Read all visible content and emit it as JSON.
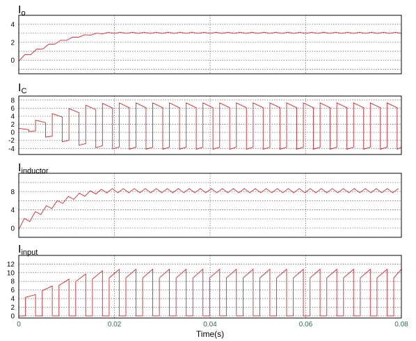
{
  "chart_data": {
    "type": "line",
    "xlabel": "Time(s)",
    "xlim": [
      0,
      0.08
    ],
    "xticks": [
      0,
      0.02,
      0.04,
      0.06,
      0.08
    ],
    "xtick_labels": [
      "0",
      "0.02",
      "0.04",
      "0.06",
      "0.08"
    ],
    "line_color": "#e0242a",
    "grid": true,
    "panels": [
      {
        "title": "I",
        "title_sub": "o",
        "ylim": [
          -1.5,
          5
        ],
        "yticks": [
          0,
          2,
          4
        ],
        "ytick_labels": [
          "0",
          "2",
          "4"
        ],
        "grid_y": [
          -1,
          0,
          1,
          2,
          3,
          4
        ],
        "series": {
          "kind": "triangle_ripple",
          "period": 0.0025,
          "start": 0.1,
          "steady": 3.05,
          "rise_time": 0.02,
          "ripple_start": 0.4,
          "ripple_end": 0.12
        }
      },
      {
        "title": "I",
        "title_sub": "C",
        "ylim": [
          -5.5,
          9
        ],
        "yticks": [
          -4,
          -2,
          0,
          2,
          4,
          6,
          8
        ],
        "ytick_labels": [
          "-4",
          "-2",
          "0",
          "2",
          "4",
          "6",
          "8"
        ],
        "grid_y": [
          -4,
          -2,
          0,
          2,
          4,
          6,
          8
        ],
        "series": {
          "kind": "pulse",
          "period": 0.0035,
          "duty": 0.6,
          "high_start": 1.0,
          "high_steady": 7.3,
          "high_droop": 1.2,
          "low_start": 0.2,
          "low_steady": -4.2,
          "low_droop": 0.5,
          "rise_time": 0.02
        }
      },
      {
        "title": "I",
        "title_sub": "inductor",
        "ylim": [
          -2,
          12
        ],
        "yticks": [
          0,
          4,
          8
        ],
        "ytick_labels": [
          "0",
          "4",
          "8"
        ],
        "grid_y": [
          0,
          2,
          4,
          6,
          8,
          10
        ],
        "series": {
          "kind": "triangle_ripple",
          "period": 0.0023,
          "start": 0.5,
          "steady": 8.2,
          "rise_time": 0.02,
          "ripple_start": 1.6,
          "ripple_end": 0.9
        }
      },
      {
        "title": "I",
        "title_sub": "input",
        "ylim": [
          -0.5,
          14
        ],
        "yticks": [
          0,
          2,
          4,
          6,
          8,
          10,
          12
        ],
        "ytick_labels": [
          "0",
          "2",
          "4",
          "6",
          "8",
          "10",
          "12"
        ],
        "grid_y": [
          0,
          2,
          4,
          6,
          8,
          10,
          12
        ],
        "series": {
          "kind": "input_pulse",
          "period": 0.0035,
          "duty": 0.6,
          "high_start": 4.0,
          "high_steady": 10.8,
          "high_droop": 2.0,
          "rise_time": 0.02
        }
      }
    ]
  }
}
